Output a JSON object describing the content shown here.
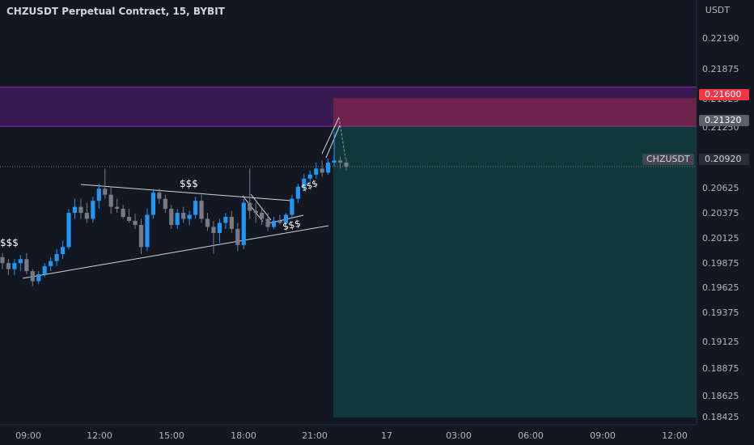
{
  "title": "CHZUSDT Perpetual Contract, 15, BYBIT",
  "unit": "USDT",
  "symbol_label": "CHZUSDT",
  "colors": {
    "bg": "#131722",
    "up": "#2196f3",
    "down": "#787b86",
    "stop": "#f23645",
    "target": "#089981",
    "zone": "#7b1fa2"
  },
  "y_ticks": [
    "0.22190",
    "0.21875",
    "0.21625",
    "0.21380",
    "0.21250",
    "0.20625",
    "0.20375",
    "0.20125",
    "0.19875",
    "0.19625",
    "0.19375",
    "0.19125",
    "0.18875",
    "0.18625",
    "0.18425"
  ],
  "x_ticks": [
    "09:00",
    "12:00",
    "15:00",
    "18:00",
    "21:00",
    "17",
    "03:00",
    "06:00",
    "09:00",
    "12:00"
  ],
  "price_tags": {
    "stop": "0.21600",
    "entry": "0.21320",
    "last": "0.20920"
  },
  "annotations": {
    "liq1": "$$$",
    "liq2": "$$$",
    "liq3": "$$$",
    "liq4": "$$$"
  },
  "chart_data": {
    "type": "candlestick",
    "title": "CHZUSDT Perpetual Contract, 15, BYBIT",
    "ylim": [
      0.18425,
      0.2219
    ],
    "grid": false,
    "y_axis_label": "USDT",
    "last_price": 0.2092,
    "short_position": {
      "entry": 0.2132,
      "stop": 0.216,
      "target": 0.18425
    },
    "supply_zone": [
      0.2132,
      0.2171
    ],
    "candles": [
      [
        0.2002,
        0.2006,
        0.199,
        0.1996
      ],
      [
        0.1996,
        0.2,
        0.1984,
        0.199
      ],
      [
        0.199,
        0.2,
        0.1984,
        0.1996
      ],
      [
        0.1996,
        0.2004,
        0.1988,
        0.2
      ],
      [
        0.2,
        0.2006,
        0.1985,
        0.1988
      ],
      [
        0.1988,
        0.199,
        0.1973,
        0.1978
      ],
      [
        0.1978,
        0.1988,
        0.1975,
        0.1985
      ],
      [
        0.1985,
        0.1996,
        0.1982,
        0.1993
      ],
      [
        0.1993,
        0.2002,
        0.1988,
        0.1998
      ],
      [
        0.1998,
        0.201,
        0.1993,
        0.2005
      ],
      [
        0.2005,
        0.2018,
        0.2,
        0.2012
      ],
      [
        0.2012,
        0.205,
        0.201,
        0.2046
      ],
      [
        0.2046,
        0.206,
        0.204,
        0.2052
      ],
      [
        0.2052,
        0.206,
        0.204,
        0.2046
      ],
      [
        0.2046,
        0.2056,
        0.2036,
        0.204
      ],
      [
        0.204,
        0.2062,
        0.2036,
        0.2058
      ],
      [
        0.2058,
        0.2075,
        0.205,
        0.207
      ],
      [
        0.207,
        0.209,
        0.206,
        0.2064
      ],
      [
        0.2064,
        0.2072,
        0.2045,
        0.2052
      ],
      [
        0.2052,
        0.206,
        0.2046,
        0.205
      ],
      [
        0.205,
        0.2054,
        0.204,
        0.2042
      ],
      [
        0.2042,
        0.205,
        0.2036,
        0.2038
      ],
      [
        0.2038,
        0.2045,
        0.203,
        0.2034
      ],
      [
        0.2034,
        0.204,
        0.2005,
        0.2012
      ],
      [
        0.2012,
        0.205,
        0.2008,
        0.2044
      ],
      [
        0.2044,
        0.207,
        0.204,
        0.2066
      ],
      [
        0.2066,
        0.207,
        0.2055,
        0.206
      ],
      [
        0.206,
        0.2064,
        0.2046,
        0.205
      ],
      [
        0.205,
        0.2054,
        0.203,
        0.2034
      ],
      [
        0.2034,
        0.205,
        0.203,
        0.2046
      ],
      [
        0.2046,
        0.2052,
        0.2036,
        0.204
      ],
      [
        0.204,
        0.2048,
        0.2034,
        0.2044
      ],
      [
        0.2044,
        0.2062,
        0.204,
        0.2058
      ],
      [
        0.2058,
        0.2064,
        0.2036,
        0.204
      ],
      [
        0.204,
        0.2046,
        0.2028,
        0.2032
      ],
      [
        0.2032,
        0.2038,
        0.2005,
        0.2026
      ],
      [
        0.2026,
        0.204,
        0.2016,
        0.2036
      ],
      [
        0.2036,
        0.2046,
        0.203,
        0.2042
      ],
      [
        0.2042,
        0.2048,
        0.2026,
        0.203
      ],
      [
        0.203,
        0.2036,
        0.2008,
        0.2014
      ],
      [
        0.2014,
        0.206,
        0.201,
        0.2056
      ],
      [
        0.2056,
        0.209,
        0.204,
        0.2048
      ],
      [
        0.2048,
        0.2056,
        0.2036,
        0.2046
      ],
      [
        0.2046,
        0.205,
        0.2034,
        0.204
      ],
      [
        0.204,
        0.2046,
        0.2028,
        0.2032
      ],
      [
        0.2032,
        0.2042,
        0.203,
        0.2038
      ],
      [
        0.2038,
        0.2044,
        0.2034,
        0.2036
      ],
      [
        0.2036,
        0.2046,
        0.2034,
        0.2044
      ],
      [
        0.2044,
        0.2064,
        0.204,
        0.206
      ],
      [
        0.206,
        0.2075,
        0.2056,
        0.2072
      ],
      [
        0.2072,
        0.2085,
        0.2068,
        0.208
      ],
      [
        0.208,
        0.2088,
        0.2074,
        0.2084
      ],
      [
        0.2084,
        0.2096,
        0.208,
        0.209
      ],
      [
        0.209,
        0.2098,
        0.2082,
        0.2086
      ],
      [
        0.2086,
        0.21,
        0.2084,
        0.2096
      ],
      [
        0.2096,
        0.2126,
        0.2092,
        0.2098
      ],
      [
        0.2098,
        0.2102,
        0.209,
        0.2096
      ],
      [
        0.2096,
        0.21,
        0.2088,
        0.2092
      ]
    ]
  }
}
